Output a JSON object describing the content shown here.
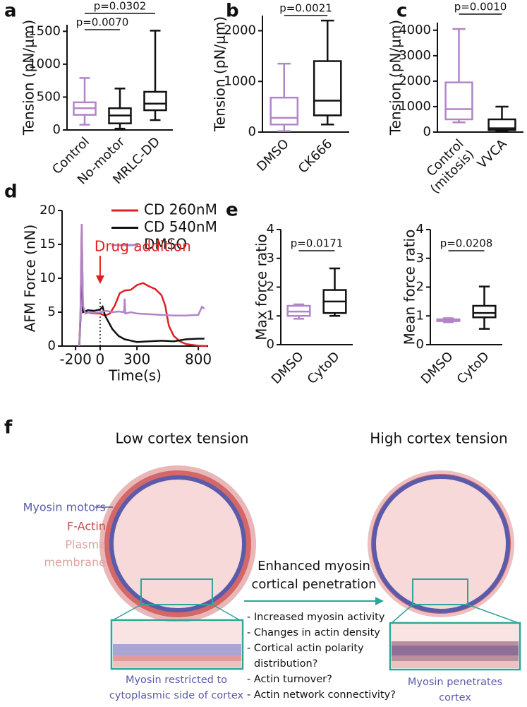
{
  "panel_labels": [
    "a",
    "b",
    "c",
    "d",
    "e",
    "f"
  ],
  "chart_data": [
    {
      "type": "box",
      "ylabel": "Tension (pN/μm)",
      "categories": [
        "Control",
        "No-motor",
        "MRLC-DD"
      ],
      "stats": [
        {
          "min": 80,
          "q1": 230,
          "median": 330,
          "q3": 420,
          "max": 790,
          "color": "#b284c9"
        },
        {
          "min": 20,
          "q1": 100,
          "median": 220,
          "q3": 330,
          "max": 630,
          "color": "#111111"
        },
        {
          "min": 150,
          "q1": 300,
          "median": 400,
          "q3": 580,
          "max": 1510,
          "color": "#111111"
        }
      ],
      "ylim": [
        0,
        1600
      ],
      "yticks": [
        0,
        500,
        1000,
        1500
      ],
      "comparisons": [
        {
          "text": "p=0.0302",
          "between": [
            "Control",
            "MRLC-DD"
          ]
        },
        {
          "text": "p=0.0070",
          "between": [
            "Control",
            "No-motor"
          ]
        }
      ]
    },
    {
      "type": "box",
      "ylabel": "Tension (pN/μm)",
      "categories": [
        "DMSO",
        "CK666"
      ],
      "stats": [
        {
          "min": 20,
          "q1": 150,
          "median": 280,
          "q3": 680,
          "max": 1350,
          "color": "#b284c9"
        },
        {
          "min": 150,
          "q1": 330,
          "median": 620,
          "q3": 1400,
          "max": 2200,
          "color": "#111111"
        }
      ],
      "ylim": [
        0,
        2300
      ],
      "yticks": [
        0,
        1000,
        2000
      ],
      "comparisons": [
        {
          "text": "p=0.0021",
          "between": [
            "DMSO",
            "CK666"
          ]
        }
      ]
    },
    {
      "type": "box",
      "ylabel": "Tension (pN/μm)",
      "categories": [
        [
          "Control",
          "(mitosis)"
        ],
        "VVCA"
      ],
      "stats": [
        {
          "min": 380,
          "q1": 500,
          "median": 900,
          "q3": 1950,
          "max": 4050,
          "color": "#b284c9"
        },
        {
          "min": 20,
          "q1": 80,
          "median": 150,
          "q3": 500,
          "max": 1000,
          "color": "#111111"
        }
      ],
      "ylim": [
        0,
        4300
      ],
      "yticks": [
        0,
        1000,
        2000,
        3000,
        4000
      ],
      "comparisons": [
        {
          "text": "p=0.0010",
          "between": [
            [
              "Control",
              "(mitosis)"
            ],
            "VVCA"
          ]
        }
      ]
    },
    {
      "type": "line",
      "xlabel": "Time(s)",
      "ylabel": "AFM Force (nN)",
      "xlim": [
        -310,
        880
      ],
      "xticks": [
        -200,
        0,
        300,
        800
      ],
      "ylim": [
        0,
        20
      ],
      "yticks": [
        0,
        5,
        10,
        15,
        20
      ],
      "legend": "upper right",
      "annotation": "Drug addition",
      "annotation_color": "#e02020",
      "series": [
        {
          "name": "CD 260nM",
          "color": "#e02020",
          "x": [
            -170,
            -160,
            -150,
            -140,
            -120,
            -80,
            -40,
            0,
            40,
            80,
            120,
            160,
            200,
            250,
            300,
            350,
            400,
            450,
            500,
            530,
            560,
            600,
            650,
            700,
            800,
            870
          ],
          "values": [
            0,
            5,
            18,
            5.5,
            5,
            4.9,
            4.8,
            4.8,
            4.5,
            4.8,
            6,
            7.8,
            8.2,
            8.3,
            9,
            9.3,
            8.8,
            8.4,
            7.5,
            6,
            3,
            1.5,
            0.7,
            0.3,
            0.05,
            0
          ]
        },
        {
          "name": "CD 540nM",
          "color": "#111111",
          "x": [
            -170,
            -160,
            -150,
            -140,
            -100,
            -50,
            0,
            20,
            40,
            70,
            100,
            150,
            200,
            250,
            300,
            400,
            500,
            600,
            700,
            800,
            850
          ],
          "values": [
            0,
            4,
            15,
            5,
            5.3,
            5.2,
            5.4,
            5.8,
            4.5,
            3.5,
            2.5,
            1.5,
            1,
            0.8,
            0.6,
            0.7,
            0.8,
            0.7,
            1,
            1.1,
            1.1
          ]
        },
        {
          "name": "DMSO",
          "color": "#b284c9",
          "x": [
            -170,
            -160,
            -150,
            -140,
            -120,
            -80,
            -40,
            0,
            50,
            100,
            150,
            195,
            200,
            205,
            250,
            300,
            400,
            500,
            600,
            700,
            800,
            830,
            850
          ],
          "values": [
            0,
            5,
            18,
            6,
            4.8,
            5,
            4.9,
            5,
            5.2,
            5,
            5.1,
            5,
            7,
            4.8,
            5,
            4.8,
            4.7,
            4.6,
            4.5,
            4.5,
            4.6,
            5.8,
            5.5
          ]
        }
      ]
    },
    {
      "type": "box",
      "ylabel": "Max force ratio",
      "categories": [
        "DMSO",
        "CytoD"
      ],
      "stats": [
        {
          "min": 0.9,
          "q1": 1.0,
          "median": 1.15,
          "q3": 1.35,
          "max": 1.4,
          "color": "#b284c9"
        },
        {
          "min": 1.0,
          "q1": 1.1,
          "median": 1.5,
          "q3": 1.9,
          "max": 2.65,
          "color": "#111111"
        }
      ],
      "ylim": [
        0,
        4
      ],
      "yticks": [
        0,
        1,
        2,
        3,
        4
      ],
      "comparisons": [
        {
          "text": "p=0.0171",
          "between": [
            "DMSO",
            "CytoD"
          ]
        }
      ]
    },
    {
      "type": "box",
      "ylabel": "Mean force ratio",
      "categories": [
        "DMSO",
        "CytoD"
      ],
      "stats": [
        {
          "min": 0.78,
          "q1": 0.82,
          "median": 0.85,
          "q3": 0.88,
          "max": 0.92,
          "color": "#b284c9"
        },
        {
          "min": 0.55,
          "q1": 0.95,
          "median": 1.1,
          "q3": 1.35,
          "max": 2.02,
          "color": "#111111"
        }
      ],
      "ylim": [
        0,
        4
      ],
      "yticks": [
        0,
        1,
        2,
        3,
        4
      ],
      "comparisons": [
        {
          "text": "p=0.0208",
          "between": [
            "DMSO",
            "CytoD"
          ]
        }
      ]
    }
  ],
  "diagram": {
    "left_title": "Low cortex tension",
    "right_title": "High cortex tension",
    "myosin_label": "Myosin motors",
    "actin_label": "F-Actin",
    "membrane_label": [
      "Plasma",
      "membrane"
    ],
    "arrow_label": [
      "Enhanced myosin",
      "cortical penetration"
    ],
    "mechanisms": [
      "- Increased myosin activity",
      "- Changes in actin density",
      "- Cortical actin polarity",
      "distribution?",
      "- Actin turnover?",
      "- Actin network connectivity?"
    ],
    "left_caption": [
      "Myosin restricted to",
      "cytoplasmic side of cortex"
    ],
    "right_caption": [
      "Myosin penetrates",
      "cortex"
    ]
  }
}
